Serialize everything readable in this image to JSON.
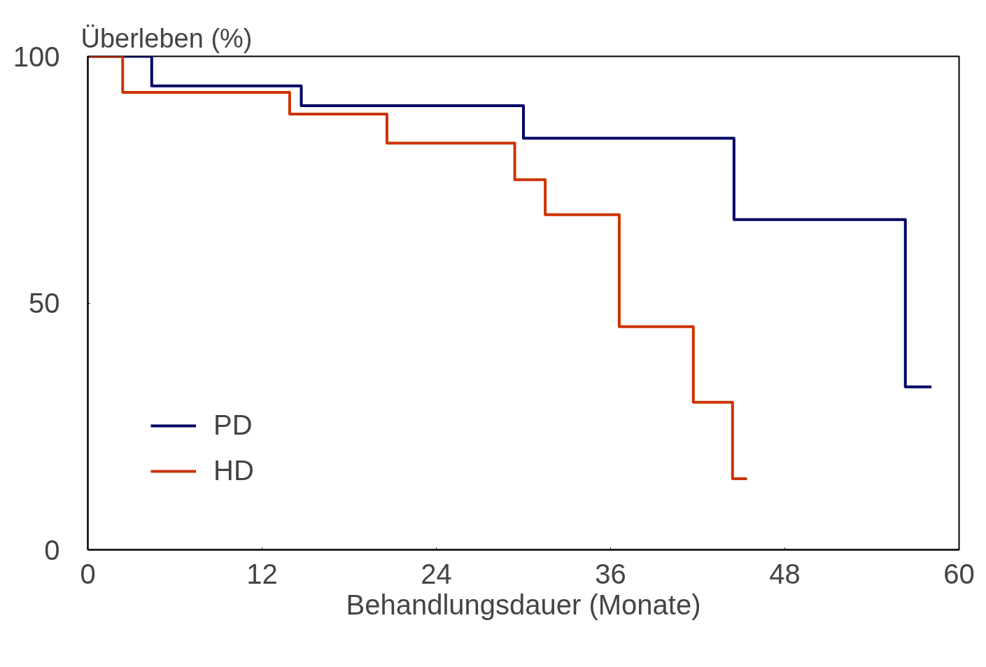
{
  "chart_data": {
    "type": "step",
    "xlabel": "Behandlungsdauer (Monate)",
    "ylabel": "Überleben (%)",
    "xlim": [
      0,
      60
    ],
    "ylim": [
      0,
      100
    ],
    "xticks": [
      0,
      12,
      24,
      36,
      48,
      60
    ],
    "yticks": [
      0,
      50,
      100
    ],
    "grid": false,
    "legend": "bottom left",
    "line_style": "solid",
    "marker": "none",
    "series": [
      {
        "name": "PD",
        "color": "#000066",
        "x": [
          0,
          4.4,
          14.7,
          30,
          44.5,
          56.3,
          58.1
        ],
        "values": [
          100,
          94,
          90,
          83.4,
          66.9,
          33,
          33
        ]
      },
      {
        "name": "HD",
        "color": "#cc3300",
        "x": [
          0,
          2.4,
          13.9,
          20.6,
          29.4,
          31.5,
          36.6,
          41.7,
          44.4,
          45.4
        ],
        "values": [
          100,
          92.7,
          88.3,
          82.4,
          75,
          67.9,
          45.2,
          29.9,
          14.4,
          14.4
        ]
      }
    ]
  }
}
